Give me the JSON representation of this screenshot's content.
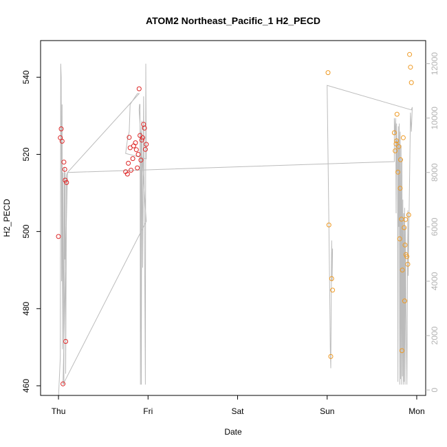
{
  "chart_data": {
    "type": "scatter",
    "title": "ATOM2 Northeast_Pacific_1 H2_PECD",
    "xlabel": "Date",
    "ylabel": "H2_PECD",
    "x_range_days": [
      -0.2,
      4.1
    ],
    "xticks": [
      {
        "day": 0,
        "label": "Thu"
      },
      {
        "day": 1,
        "label": "Fri"
      },
      {
        "day": 2,
        "label": "Sat"
      },
      {
        "day": 3,
        "label": "Sun"
      },
      {
        "day": 4,
        "label": "Mon"
      }
    ],
    "ylim": [
      457.5,
      549.5
    ],
    "yticks": [
      460,
      480,
      500,
      520,
      540
    ],
    "y2lim": [
      -200,
      12850
    ],
    "y2ticks": [
      0,
      2000,
      4000,
      6000,
      8000,
      10000,
      12000
    ],
    "grid": false,
    "colors": {
      "series1": "#dd2222",
      "series2": "#ee9922",
      "line": "#bbbbbb"
    },
    "series": [
      {
        "color": "#dd2222",
        "points": [
          [
            0.0,
            498.7
          ],
          [
            0.02,
            524.3
          ],
          [
            0.03,
            526.6
          ],
          [
            0.04,
            523.4
          ],
          [
            0.05,
            460.5
          ],
          [
            0.06,
            518.0
          ],
          [
            0.07,
            516.1
          ],
          [
            0.075,
            513.3
          ],
          [
            0.08,
            471.5
          ],
          [
            0.09,
            512.7
          ],
          [
            0.75,
            515.5
          ],
          [
            0.77,
            514.9
          ],
          [
            0.78,
            517.7
          ],
          [
            0.79,
            524.4
          ],
          [
            0.8,
            521.7
          ],
          [
            0.81,
            515.9
          ],
          [
            0.83,
            518.9
          ],
          [
            0.84,
            522.2
          ],
          [
            0.86,
            523.0
          ],
          [
            0.87,
            521.2
          ],
          [
            0.88,
            516.5
          ],
          [
            0.89,
            520.0
          ],
          [
            0.9,
            537.0
          ],
          [
            0.91,
            524.9
          ],
          [
            0.92,
            518.5
          ],
          [
            0.93,
            523.7
          ],
          [
            0.94,
            524.3
          ],
          [
            0.95,
            527.8
          ],
          [
            0.96,
            526.8
          ],
          [
            0.97,
            521.3
          ],
          [
            0.98,
            522.6
          ]
        ]
      },
      {
        "color": "#ee9922",
        "points": [
          [
            3.01,
            541.2
          ],
          [
            3.02,
            501.7
          ],
          [
            3.04,
            467.6
          ],
          [
            3.05,
            487.8
          ],
          [
            3.06,
            484.8
          ],
          [
            3.75,
            525.6
          ],
          [
            3.76,
            520.9
          ],
          [
            3.77,
            522.7
          ],
          [
            3.775,
            523.5
          ],
          [
            3.78,
            530.4
          ],
          [
            3.79,
            515.4
          ],
          [
            3.8,
            522.0
          ],
          [
            3.81,
            498.1
          ],
          [
            3.815,
            511.2
          ],
          [
            3.82,
            518.6
          ],
          [
            3.83,
            503.2
          ],
          [
            3.835,
            469.1
          ],
          [
            3.84,
            490.0
          ],
          [
            3.85,
            524.3
          ],
          [
            3.86,
            501.0
          ],
          [
            3.865,
            482.0
          ],
          [
            3.87,
            496.5
          ],
          [
            3.875,
            503.1
          ],
          [
            3.88,
            494.0
          ],
          [
            3.89,
            493.5
          ],
          [
            3.9,
            491.5
          ],
          [
            3.91,
            504.3
          ],
          [
            3.92,
            545.9
          ],
          [
            3.93,
            542.6
          ],
          [
            3.94,
            538.6
          ]
        ]
      }
    ],
    "secondary_line": {
      "color": "#bbbbbb",
      "points": [
        [
          0.0,
          -300
        ],
        [
          0.02,
          1200
        ],
        [
          0.025,
          12000
        ],
        [
          0.03,
          11500
        ],
        [
          0.035,
          4000
        ],
        [
          0.04,
          10500
        ],
        [
          0.045,
          1500
        ],
        [
          0.05,
          8000
        ],
        [
          0.06,
          200
        ],
        [
          0.065,
          8200
        ],
        [
          0.07,
          4800
        ],
        [
          0.075,
          8000
        ],
        [
          0.08,
          600
        ],
        [
          0.09,
          7900
        ],
        [
          0.1,
          8000
        ],
        [
          0.05,
          200
        ],
        [
          0.98,
          6200
        ],
        [
          0.9,
          10300
        ],
        [
          0.905,
          10500
        ],
        [
          0.91,
          10500
        ],
        [
          0.915,
          200
        ],
        [
          0.92,
          9500
        ],
        [
          0.925,
          200
        ],
        [
          0.93,
          9900
        ],
        [
          0.94,
          4500
        ],
        [
          0.95,
          10800
        ],
        [
          0.96,
          6000
        ],
        [
          0.97,
          200
        ],
        [
          0.975,
          12000
        ],
        [
          0.98,
          8500
        ],
        [
          0.75,
          8700
        ],
        [
          0.77,
          9200
        ],
        [
          0.79,
          9500
        ],
        [
          0.8,
          10500
        ],
        [
          0.82,
          10600
        ],
        [
          0.84,
          10700
        ],
        [
          0.86,
          10800
        ],
        [
          0.88,
          10900
        ],
        [
          0.9,
          10900
        ],
        [
          0.1,
          8000
        ],
        [
          3.75,
          8400
        ],
        [
          3.75,
          10000
        ],
        [
          3.76,
          9400
        ],
        [
          3.765,
          10000
        ],
        [
          3.77,
          6500
        ],
        [
          3.775,
          9800
        ],
        [
          3.78,
          8000
        ],
        [
          3.785,
          9200
        ],
        [
          3.79,
          300
        ],
        [
          3.795,
          9700
        ],
        [
          3.8,
          6000
        ],
        [
          3.805,
          9800
        ],
        [
          3.81,
          200
        ],
        [
          3.815,
          9500
        ],
        [
          3.82,
          400
        ],
        [
          3.825,
          9000
        ],
        [
          3.83,
          200
        ],
        [
          3.835,
          8500
        ],
        [
          3.84,
          500
        ],
        [
          3.845,
          7000
        ],
        [
          3.85,
          200
        ],
        [
          3.855,
          6500
        ],
        [
          3.86,
          300
        ],
        [
          3.865,
          6700
        ],
        [
          3.87,
          200
        ],
        [
          3.875,
          6000
        ],
        [
          3.88,
          3000
        ],
        [
          3.89,
          200
        ],
        [
          3.9,
          6600
        ],
        [
          3.905,
          4200
        ],
        [
          3.93,
          10200
        ],
        [
          3.94,
          9500
        ],
        [
          3.95,
          10400
        ],
        [
          3.95,
          10400
        ],
        [
          3.94,
          10300
        ],
        [
          3.0,
          11200
        ],
        [
          3.02,
          6000
        ],
        [
          3.03,
          3000
        ],
        [
          3.035,
          1500
        ],
        [
          3.04,
          800
        ],
        [
          3.05,
          5500
        ],
        [
          3.055,
          4000
        ],
        [
          3.06,
          5200
        ]
      ]
    }
  }
}
